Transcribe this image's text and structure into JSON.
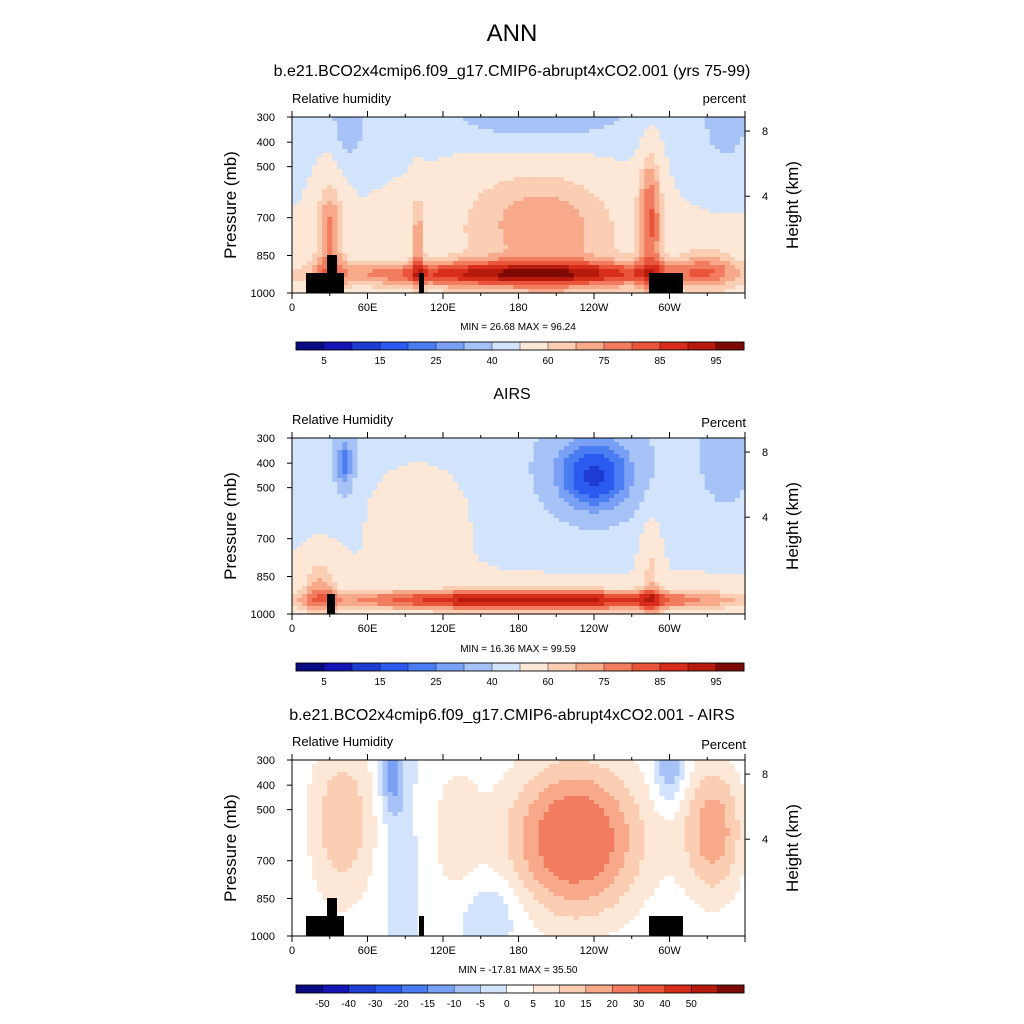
{
  "page": {
    "title": "ANN"
  },
  "colormaps": {
    "rh": [
      "#0a0a82",
      "#1414b4",
      "#1e3cd2",
      "#2a5af0",
      "#4a7cf2",
      "#7aa0f5",
      "#a6c2f7",
      "#d2e4fb",
      "#fde8d8",
      "#fbcdb2",
      "#f7a98a",
      "#f27c5f",
      "#e9553a",
      "#d62e1a",
      "#b51a0d",
      "#7e0a05"
    ],
    "diff": [
      "#0a0a82",
      "#1414b4",
      "#1e3cd2",
      "#2a5af0",
      "#4a7cf2",
      "#7aa0f5",
      "#a6c2f7",
      "#d2e4fb",
      "#ffffff",
      "#fde8d8",
      "#fbcdb2",
      "#f7a98a",
      "#f27c5f",
      "#e9553a",
      "#d62e1a",
      "#b51a0d",
      "#7e0a05"
    ]
  },
  "panels": [
    {
      "title": "b.e21.BCO2x4cmip6.f09_g17.CMIP6-abrupt4xCO2.001 (yrs 75-99)",
      "left_label": "Relative humidity",
      "right_label": "percent",
      "minmax_text": "MIN =  26.68  MAX =  96.24",
      "colorbar_labels": [
        "5",
        "15",
        "25",
        "40",
        "60",
        "75",
        "85",
        "95"
      ]
    },
    {
      "title": "AIRS",
      "left_label": "Relative Humidity",
      "right_label": "Percent",
      "minmax_text": "MIN =  16.36  MAX =  99.59",
      "colorbar_labels": [
        "5",
        "15",
        "25",
        "40",
        "60",
        "75",
        "85",
        "95"
      ]
    },
    {
      "title": "b.e21.BCO2x4cmip6.f09_g17.CMIP6-abrupt4xCO2.001 - AIRS",
      "left_label": "Relative Humidity",
      "right_label": "Percent",
      "minmax_text": "MIN = -17.81  MAX =  35.50",
      "colorbar_labels": [
        "-50",
        "-40",
        "-30",
        "-20",
        "-15",
        "-10",
        "-5",
        "0",
        "5",
        "10",
        "15",
        "20",
        "30",
        "40",
        "50"
      ]
    }
  ],
  "chart_data": [
    {
      "type": "heatmap",
      "title": "b.e21.BCO2x4cmip6.f09_g17.CMIP6-abrupt4xCO2.001 (yrs 75-99)",
      "variable": "Relative humidity",
      "units": "percent",
      "ylabel": "Pressure (mb)",
      "ylabel_right": "Height (km)",
      "x_ticks": [
        "0",
        "60E",
        "120E",
        "180",
        "120W",
        "60W"
      ],
      "y_ticks": [
        "300",
        "400",
        "500",
        "700",
        "850",
        "1000"
      ],
      "y_ticks_right": [
        "8",
        "4"
      ],
      "min": 26.68,
      "max": 96.24,
      "colorbar_levels": [
        5,
        10,
        15,
        20,
        25,
        30,
        40,
        50,
        60,
        65,
        70,
        75,
        80,
        85,
        90,
        95
      ]
    },
    {
      "type": "heatmap",
      "title": "AIRS",
      "variable": "Relative Humidity",
      "units": "Percent",
      "ylabel": "Pressure (mb)",
      "ylabel_right": "Height (km)",
      "x_ticks": [
        "0",
        "60E",
        "120E",
        "180",
        "120W",
        "60W"
      ],
      "y_ticks": [
        "300",
        "400",
        "500",
        "700",
        "850",
        "1000"
      ],
      "y_ticks_right": [
        "8",
        "4"
      ],
      "min": 16.36,
      "max": 99.59,
      "colorbar_levels": [
        5,
        10,
        15,
        20,
        25,
        30,
        40,
        50,
        60,
        65,
        70,
        75,
        80,
        85,
        90,
        95
      ]
    },
    {
      "type": "heatmap",
      "title": "b.e21.BCO2x4cmip6.f09_g17.CMIP6-abrupt4xCO2.001 - AIRS",
      "variable": "Relative Humidity",
      "units": "Percent",
      "ylabel": "Pressure (mb)",
      "ylabel_right": "Height (km)",
      "x_ticks": [
        "0",
        "60E",
        "120E",
        "180",
        "120W",
        "60W"
      ],
      "y_ticks": [
        "300",
        "400",
        "500",
        "700",
        "850",
        "1000"
      ],
      "y_ticks_right": [
        "8",
        "4"
      ],
      "min": -17.81,
      "max": 35.5,
      "colorbar_levels": [
        -50,
        -40,
        -30,
        -20,
        -15,
        -10,
        -5,
        0,
        5,
        10,
        15,
        20,
        30,
        40,
        50
      ]
    }
  ]
}
